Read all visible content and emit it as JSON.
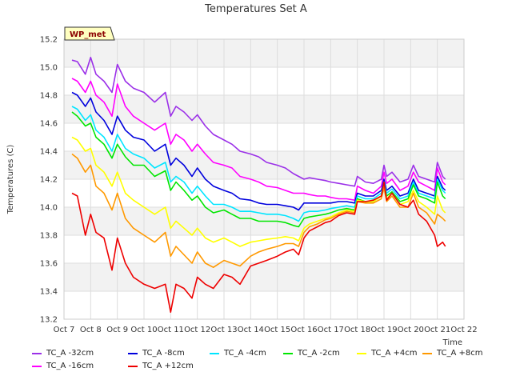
{
  "chart_data": {
    "type": "line",
    "title": "Temperatures Set A",
    "xlabel": "Time",
    "ylabel": "Temperatures (C)",
    "badge": "WP_met",
    "xlim": [
      7,
      22
    ],
    "ylim": [
      13.2,
      15.2
    ],
    "x_ticks": [
      7,
      8,
      9,
      10,
      11,
      12,
      13,
      14,
      15,
      16,
      17,
      18,
      19,
      20,
      21,
      22
    ],
    "x_tick_labels": [
      "Oct 7",
      "Oct 8",
      "Oct 9",
      "Oct 10",
      "Oct 11",
      "Oct 12",
      "Oct 13",
      "Oct 14",
      "Oct 15",
      "Oct 16",
      "Oct 17",
      "Oct 18",
      "Oct 19",
      "Oct 20",
      "Oct 21",
      "Oct 22"
    ],
    "y_ticks": [
      13.2,
      13.4,
      13.6,
      13.8,
      14.0,
      14.2,
      14.4,
      14.6,
      14.8,
      15.0,
      15.2
    ],
    "y_tick_labels": [
      "13.2",
      "13.4",
      "13.6",
      "13.8",
      "14.0",
      "14.2",
      "14.4",
      "14.6",
      "14.8",
      "15.0",
      "15.2"
    ],
    "grid": true,
    "legend_position": "bottom",
    "x": [
      7.3,
      7.5,
      7.8,
      8.0,
      8.2,
      8.5,
      8.8,
      9.0,
      9.3,
      9.6,
      10.0,
      10.4,
      10.8,
      11.0,
      11.2,
      11.5,
      11.8,
      12.0,
      12.3,
      12.6,
      13.0,
      13.3,
      13.6,
      14.0,
      14.3,
      14.6,
      15.0,
      15.3,
      15.6,
      15.8,
      16.0,
      16.2,
      16.5,
      16.8,
      17.0,
      17.3,
      17.6,
      17.9,
      18.0,
      18.3,
      18.6,
      18.9,
      19.0,
      19.1,
      19.3,
      19.6,
      19.9,
      20.1,
      20.3,
      20.6,
      20.9,
      21.0,
      21.2,
      21.3
    ],
    "series": [
      {
        "name": "TC_A -32cm",
        "color": "#9b30e8",
        "values": [
          15.05,
          15.04,
          14.95,
          15.07,
          14.95,
          14.9,
          14.82,
          15.02,
          14.9,
          14.85,
          14.82,
          14.75,
          14.82,
          14.65,
          14.72,
          14.68,
          14.62,
          14.66,
          14.58,
          14.52,
          14.48,
          14.45,
          14.4,
          14.38,
          14.36,
          14.32,
          14.3,
          14.28,
          14.24,
          14.22,
          14.2,
          14.21,
          14.2,
          14.19,
          14.18,
          14.17,
          14.16,
          14.15,
          14.22,
          14.18,
          14.17,
          14.2,
          14.3,
          14.22,
          14.25,
          14.18,
          14.2,
          14.3,
          14.22,
          14.2,
          14.18,
          14.32,
          14.22,
          14.2
        ]
      },
      {
        "name": "TC_A -16cm",
        "color": "#ff00ff",
        "values": [
          14.92,
          14.9,
          14.82,
          14.9,
          14.8,
          14.75,
          14.65,
          14.88,
          14.72,
          14.65,
          14.6,
          14.55,
          14.6,
          14.45,
          14.52,
          14.48,
          14.4,
          14.45,
          14.38,
          14.32,
          14.3,
          14.28,
          14.22,
          14.2,
          14.18,
          14.15,
          14.14,
          14.12,
          14.1,
          14.1,
          14.1,
          14.09,
          14.08,
          14.08,
          14.07,
          14.06,
          14.06,
          14.05,
          14.15,
          14.12,
          14.1,
          14.15,
          14.25,
          14.17,
          14.2,
          14.12,
          14.15,
          14.25,
          14.18,
          14.15,
          14.12,
          14.28,
          14.18,
          14.16
        ]
      },
      {
        "name": "TC_A -8cm",
        "color": "#0000dd",
        "values": [
          14.82,
          14.8,
          14.72,
          14.78,
          14.68,
          14.62,
          14.52,
          14.65,
          14.55,
          14.5,
          14.48,
          14.4,
          14.45,
          14.3,
          14.35,
          14.3,
          14.22,
          14.28,
          14.2,
          14.15,
          14.12,
          14.1,
          14.06,
          14.05,
          14.03,
          14.02,
          14.02,
          14.01,
          14.0,
          13.98,
          14.03,
          14.03,
          14.03,
          14.03,
          14.03,
          14.04,
          14.04,
          14.03,
          14.1,
          14.08,
          14.08,
          14.12,
          14.2,
          14.12,
          14.15,
          14.08,
          14.1,
          14.2,
          14.12,
          14.1,
          14.08,
          14.22,
          14.14,
          14.12
        ]
      },
      {
        "name": "TC_A -4cm",
        "color": "#00e5ff",
        "values": [
          14.72,
          14.7,
          14.62,
          14.66,
          14.55,
          14.5,
          14.4,
          14.52,
          14.42,
          14.38,
          14.35,
          14.28,
          14.32,
          14.18,
          14.22,
          14.18,
          14.1,
          14.15,
          14.08,
          14.02,
          14.02,
          14.0,
          13.97,
          13.97,
          13.96,
          13.95,
          13.95,
          13.94,
          13.92,
          13.9,
          13.96,
          13.97,
          13.97,
          13.98,
          13.99,
          14.0,
          14.01,
          14.0,
          14.08,
          14.06,
          14.06,
          14.1,
          14.18,
          14.1,
          14.13,
          14.06,
          14.08,
          14.18,
          14.1,
          14.08,
          14.06,
          14.2,
          14.12,
          14.1
        ]
      },
      {
        "name": "TC_A -2cm",
        "color": "#00e600",
        "values": [
          14.68,
          14.65,
          14.58,
          14.6,
          14.5,
          14.45,
          14.35,
          14.45,
          14.36,
          14.3,
          14.3,
          14.22,
          14.26,
          14.12,
          14.18,
          14.12,
          14.05,
          14.08,
          14.0,
          13.96,
          13.98,
          13.95,
          13.92,
          13.92,
          13.9,
          13.9,
          13.9,
          13.89,
          13.87,
          13.86,
          13.92,
          13.93,
          13.94,
          13.95,
          13.96,
          13.98,
          13.99,
          13.98,
          14.06,
          14.04,
          14.04,
          14.08,
          14.16,
          14.08,
          14.11,
          14.04,
          14.06,
          14.16,
          14.08,
          14.06,
          14.03,
          14.18,
          14.08,
          14.06
        ]
      },
      {
        "name": "TC_A +4cm",
        "color": "#ffff00",
        "values": [
          14.5,
          14.48,
          14.4,
          14.42,
          14.3,
          14.25,
          14.15,
          14.25,
          14.1,
          14.05,
          14.0,
          13.95,
          14.0,
          13.85,
          13.9,
          13.85,
          13.8,
          13.85,
          13.78,
          13.75,
          13.78,
          13.75,
          13.72,
          13.75,
          13.76,
          13.77,
          13.78,
          13.79,
          13.78,
          13.76,
          13.85,
          13.88,
          13.9,
          13.92,
          13.93,
          13.96,
          13.98,
          13.97,
          14.05,
          14.04,
          14.04,
          14.08,
          14.15,
          14.06,
          14.1,
          14.02,
          14.04,
          14.12,
          14.04,
          14.0,
          13.95,
          14.08,
          13.98,
          13.96
        ]
      },
      {
        "name": "TC_A +8cm",
        "color": "#ff9900",
        "values": [
          14.38,
          14.35,
          14.25,
          14.3,
          14.15,
          14.1,
          13.98,
          14.1,
          13.92,
          13.85,
          13.8,
          13.75,
          13.82,
          13.65,
          13.72,
          13.66,
          13.6,
          13.68,
          13.6,
          13.57,
          13.62,
          13.6,
          13.58,
          13.65,
          13.68,
          13.7,
          13.72,
          13.74,
          13.74,
          13.72,
          13.82,
          13.86,
          13.88,
          13.91,
          13.92,
          13.95,
          13.97,
          13.96,
          14.04,
          14.03,
          14.03,
          14.06,
          14.14,
          14.04,
          14.08,
          14.0,
          14.0,
          14.1,
          14.0,
          13.96,
          13.88,
          13.95,
          13.92,
          13.9
        ]
      },
      {
        "name": "TC_A +12cm",
        "color": "#ee0000",
        "values": [
          14.1,
          14.08,
          13.8,
          13.95,
          13.82,
          13.78,
          13.55,
          13.78,
          13.6,
          13.5,
          13.45,
          13.42,
          13.45,
          13.25,
          13.45,
          13.42,
          13.35,
          13.5,
          13.45,
          13.42,
          13.52,
          13.5,
          13.45,
          13.58,
          13.6,
          13.62,
          13.65,
          13.68,
          13.7,
          13.66,
          13.78,
          13.83,
          13.86,
          13.89,
          13.9,
          13.94,
          13.96,
          13.95,
          14.04,
          14.04,
          14.05,
          14.08,
          14.18,
          14.05,
          14.1,
          14.02,
          14.0,
          14.05,
          13.95,
          13.9,
          13.8,
          13.72,
          13.75,
          13.72
        ]
      }
    ]
  }
}
